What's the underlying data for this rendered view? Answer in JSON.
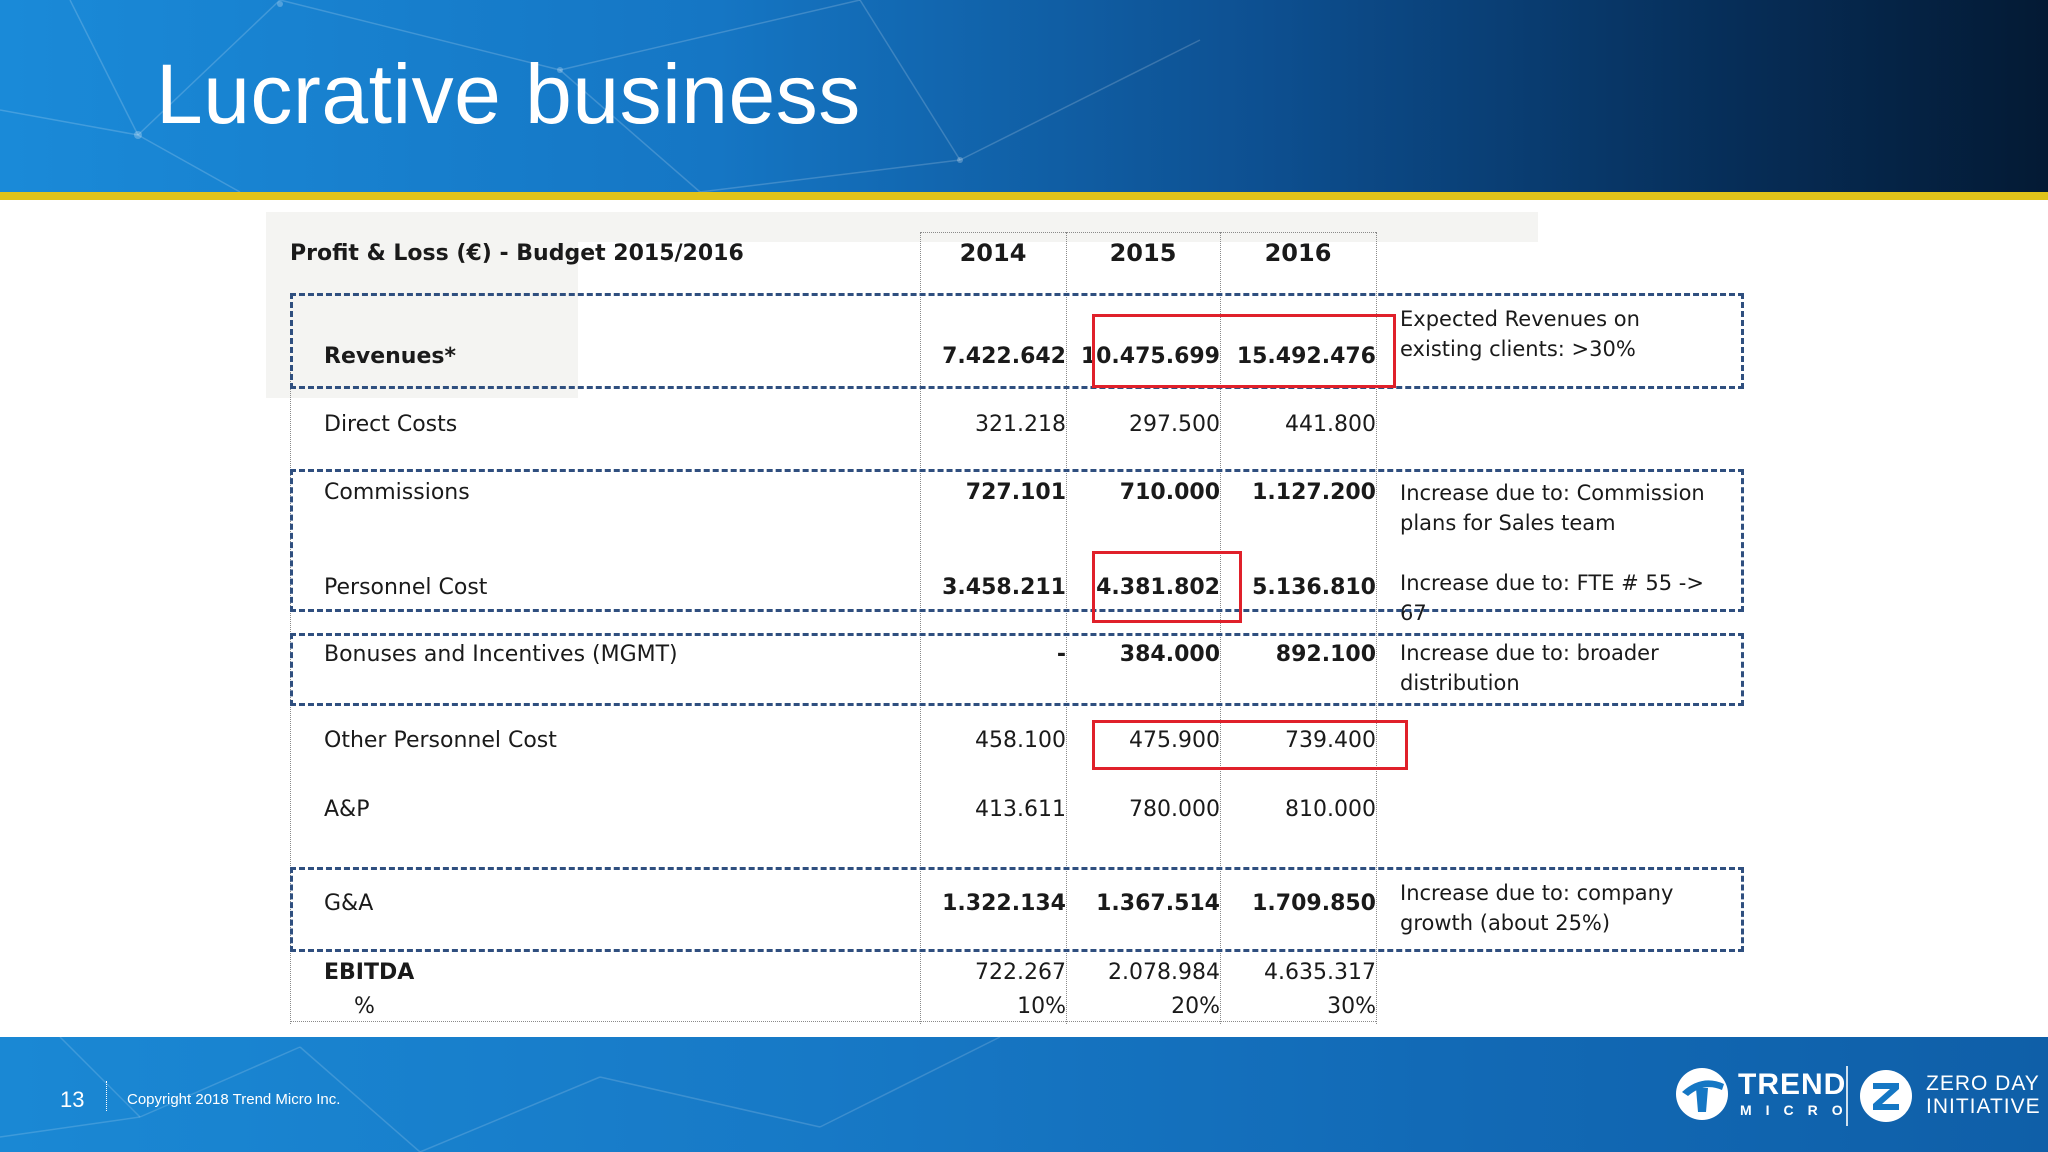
{
  "slide": {
    "title": "Lucrative business",
    "page_number": "13",
    "copyright": "Copyright 2018 Trend Micro Inc."
  },
  "logos": {
    "trend_word": "TREND",
    "trend_sub": "MICRO",
    "zdi_line1": "ZERO DAY",
    "zdi_line2": "INITIATIVE"
  },
  "table": {
    "heading": "Profit & Loss (€) - Budget 2015/2016",
    "years": [
      "2014",
      "2015",
      "2016"
    ],
    "rows": [
      {
        "label": "Revenues*",
        "v2014": "7.422.642",
        "v2015": "10.475.699",
        "v2016": "15.492.476",
        "bold": true
      },
      {
        "label": "Direct Costs",
        "v2014": "321.218",
        "v2015": "297.500",
        "v2016": "441.800",
        "bold": false
      },
      {
        "label": "Commissions",
        "v2014": "727.101",
        "v2015": "710.000",
        "v2016": "1.127.200",
        "bold": false
      },
      {
        "label": "Personnel Cost",
        "v2014": "3.458.211",
        "v2015": "4.381.802",
        "v2016": "5.136.810",
        "bold": false
      },
      {
        "label": "Bonuses and Incentives (MGMT)",
        "v2014": "-",
        "v2015": "384.000",
        "v2016": "892.100",
        "bold": false
      },
      {
        "label": "Other Personnel Cost",
        "v2014": "458.100",
        "v2015": "475.900",
        "v2016": "739.400",
        "bold": false
      },
      {
        "label": "A&P",
        "v2014": "413.611",
        "v2015": "780.000",
        "v2016": "810.000",
        "bold": false
      },
      {
        "label": "G&A",
        "v2014": "1.322.134",
        "v2015": "1.367.514",
        "v2016": "1.709.850",
        "bold": false
      },
      {
        "label": "EBITDA",
        "v2014": "722.267",
        "v2015": "2.078.984",
        "v2016": "4.635.317",
        "bold": true
      },
      {
        "label": "%",
        "v2014": "10%",
        "v2015": "20%",
        "v2016": "30%",
        "bold": false
      }
    ],
    "notes": {
      "revenues": "Expected Revenues on existing clients: >30%",
      "commissions": "Increase due to: Commission plans for Sales team",
      "personnel": "Increase due to: FTE # 55 -> 67",
      "bonuses": "Increase due to:  broader distribution",
      "ga": "Increase due to: company growth (about 25%)"
    }
  },
  "colors": {
    "title_band": "#1576c4",
    "accent_rule": "#e1c31a",
    "dashed_box": "#2f4f7f",
    "highlight_box": "#e0202a"
  }
}
